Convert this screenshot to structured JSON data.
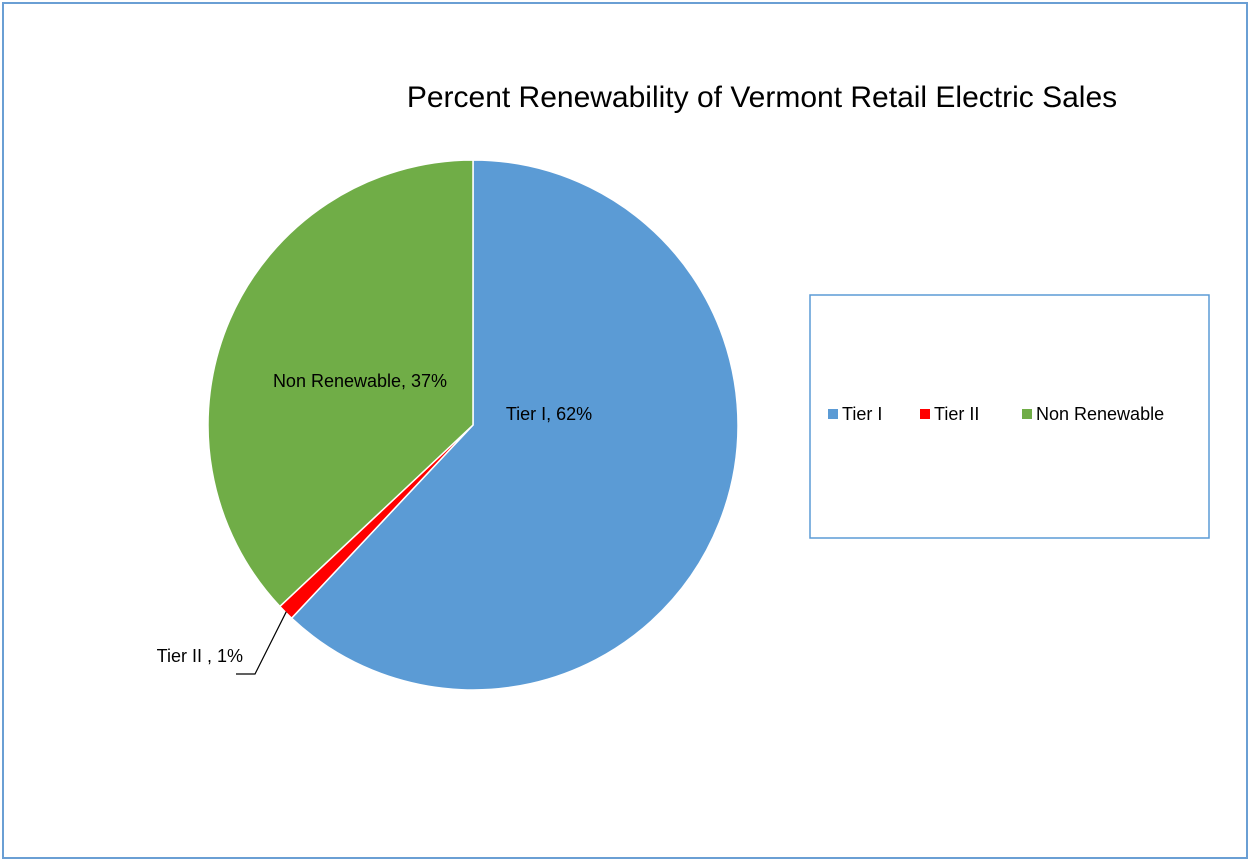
{
  "chart_data": {
    "type": "pie",
    "title": "Percent Renewability of Vermont Retail Electric Sales",
    "categories": [
      "Tier I",
      "Tier II",
      "Non Renewable"
    ],
    "values": [
      62,
      1,
      37
    ],
    "unit": "%",
    "data_labels": [
      "Tier I, 62%",
      "Tier II , 1%",
      "Non Renewable, 37%"
    ],
    "colors": [
      "#5b9bd5",
      "#ff0000",
      "#70ad47"
    ],
    "legend": {
      "position": "right",
      "items": [
        "Tier I",
        "Tier II",
        "Non Renewable"
      ]
    }
  },
  "colors": {
    "frame_border": "#6a9fd4",
    "legend_border": "#5b9bd5",
    "background": "#ffffff"
  }
}
